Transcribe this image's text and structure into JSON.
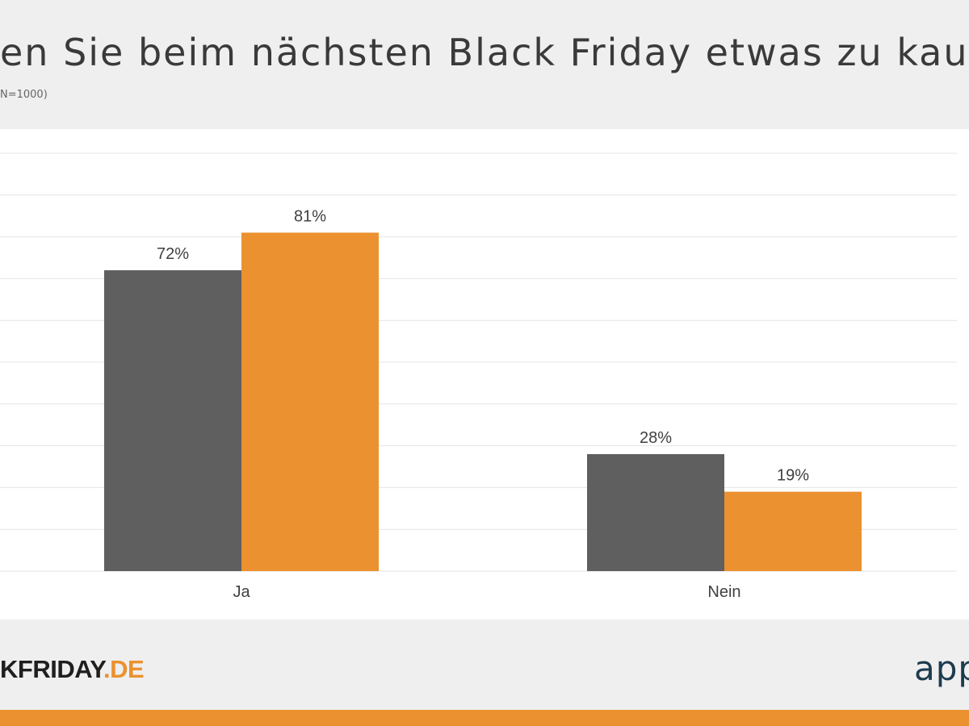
{
  "header": {
    "title": "en Sie beim nächsten Black Friday etwas zu kaufe",
    "subtitle": "N=1000)"
  },
  "chart_data": {
    "type": "bar",
    "categories": [
      "Ja",
      "Nein"
    ],
    "series": [
      {
        "values": [
          72,
          28
        ],
        "labels": [
          "72%",
          "28%"
        ]
      },
      {
        "values": [
          81,
          19
        ],
        "labels": [
          "81%",
          "19%"
        ]
      }
    ],
    "ylim": [
      0,
      100
    ],
    "grid": true,
    "colors": [
      "#5f5f5f",
      "#eb912f"
    ]
  },
  "footer": {
    "logo_left": {
      "main": "KFRIDAY",
      "dot": ".",
      "suffix": "DE"
    },
    "logo_right": "app"
  }
}
